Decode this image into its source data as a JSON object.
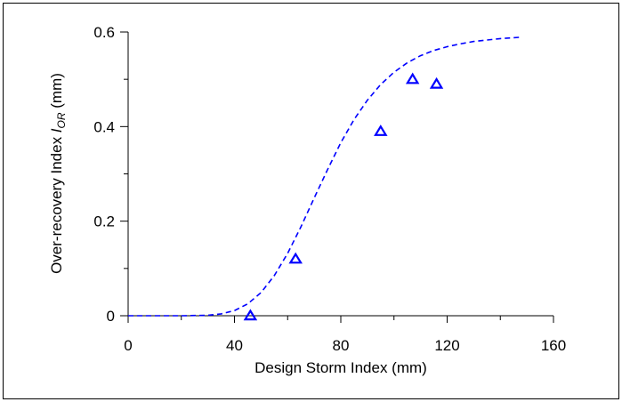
{
  "chart_data": {
    "type": "scatter",
    "title": "",
    "xlabel": "Design Storm Index (mm)",
    "ylabel": {
      "main": "Over-recovery Index ",
      "symbol": "I",
      "subscript": "OR",
      "unit": " (mm)"
    },
    "xlim": [
      0,
      160
    ],
    "ylim": [
      0,
      0.6
    ],
    "xticks": [
      0,
      40,
      80,
      120,
      160
    ],
    "xtick_labels": [
      "0",
      "40",
      "80",
      "120",
      "160"
    ],
    "yticks": [
      0,
      0.2,
      0.4,
      0.6
    ],
    "ytick_labels": [
      "0",
      "0.2",
      "0.4",
      "0.6"
    ],
    "grid": false,
    "series": [
      {
        "kind": "scatter",
        "marker": "triangle-open",
        "color": "#0000ff",
        "x": [
          46,
          63,
          95,
          107,
          116
        ],
        "y": [
          0.0,
          0.12,
          0.39,
          0.5,
          0.49
        ]
      },
      {
        "kind": "line",
        "style": "dashed",
        "color": "#0000ff",
        "x": [
          0,
          10,
          20,
          30,
          35,
          40,
          45,
          50,
          55,
          60,
          65,
          70,
          75,
          80,
          85,
          90,
          95,
          100,
          105,
          110,
          115,
          120,
          125,
          130,
          135,
          140,
          145,
          148
        ],
        "y": [
          0,
          0,
          0,
          0.001,
          0.004,
          0.011,
          0.025,
          0.049,
          0.085,
          0.132,
          0.188,
          0.249,
          0.309,
          0.366,
          0.415,
          0.456,
          0.489,
          0.515,
          0.535,
          0.55,
          0.561,
          0.569,
          0.575,
          0.58,
          0.583,
          0.586,
          0.588,
          0.589
        ]
      }
    ]
  }
}
